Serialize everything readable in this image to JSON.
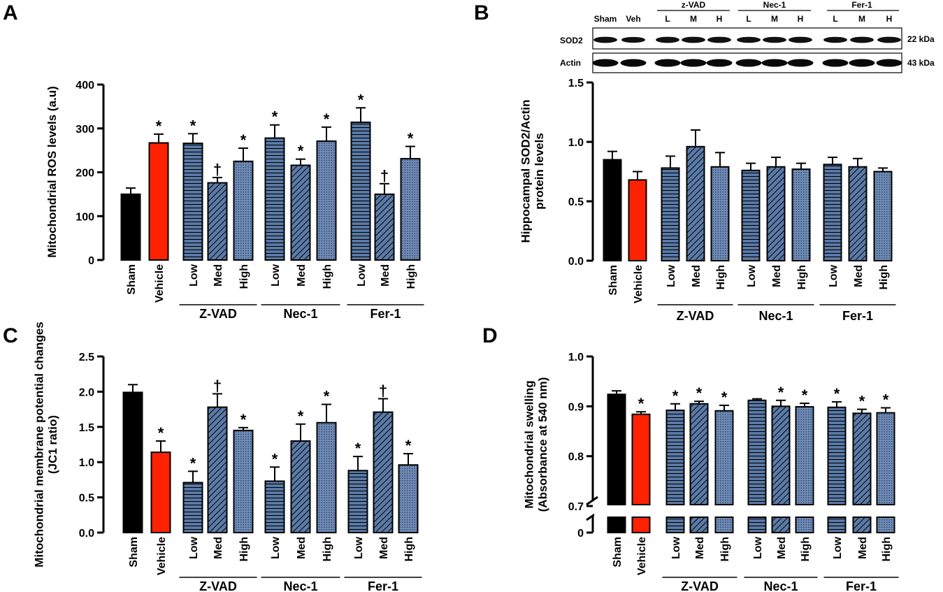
{
  "chart_data": [
    {
      "panel": "A",
      "type": "bar",
      "ylabel": "Mitochondrial ROS levels (a.u)",
      "ylim": [
        0,
        400
      ],
      "yticks": [
        "0",
        "100",
        "200",
        "300",
        "400"
      ],
      "categories": [
        "Sham",
        "Vehicle",
        "Low",
        "Med",
        "High",
        "Low",
        "Med",
        "High",
        "Low",
        "Med",
        "High"
      ],
      "groups": [
        "Z-VAD",
        "Nec-1",
        "Fer-1"
      ],
      "values": [
        150,
        267,
        266,
        176,
        225,
        278,
        216,
        271,
        314,
        150,
        231
      ],
      "errors": [
        14,
        20,
        22,
        12,
        30,
        30,
        14,
        32,
        33,
        24,
        28
      ],
      "annotations": [
        "",
        "*",
        "*",
        "†",
        "*",
        "*",
        "*",
        "*",
        "*",
        "†",
        "*"
      ]
    },
    {
      "panel": "B",
      "type": "bar",
      "ylabel": "Hippocampal SOD2/Actin protein levels",
      "ylim": [
        0,
        1.5
      ],
      "yticks": [
        "0.0",
        "0.5",
        "1.0",
        "1.5"
      ],
      "categories": [
        "Sham",
        "Vehicle",
        "Low",
        "Med",
        "High",
        "Low",
        "Med",
        "High",
        "Low",
        "Med",
        "High"
      ],
      "groups": [
        "Z-VAD",
        "Nec-1",
        "Fer-1"
      ],
      "values": [
        0.85,
        0.68,
        0.78,
        0.96,
        0.79,
        0.76,
        0.79,
        0.77,
        0.81,
        0.79,
        0.75
      ],
      "errors": [
        0.07,
        0.07,
        0.1,
        0.14,
        0.12,
        0.06,
        0.08,
        0.05,
        0.06,
        0.07,
        0.03
      ],
      "annotations": [
        "",
        "",
        "",
        "",
        "",
        "",
        "",
        "",
        "",
        "",
        ""
      ]
    },
    {
      "panel": "C",
      "type": "bar",
      "ylabel": "Mitochondrial membrane potential changes (JC1 ratio)",
      "ylim": [
        0,
        2.5
      ],
      "yticks": [
        "0.0",
        "0.5",
        "1.0",
        "1.5",
        "2.0",
        "2.5"
      ],
      "categories": [
        "Sham",
        "Vehicle",
        "Low",
        "Med",
        "High",
        "Low",
        "Med",
        "High",
        "Low",
        "Med",
        "High"
      ],
      "groups": [
        "Z-VAD",
        "Nec-1",
        "Fer-1"
      ],
      "values": [
        1.99,
        1.14,
        0.71,
        1.78,
        1.45,
        0.73,
        1.3,
        1.56,
        0.88,
        1.71,
        0.96
      ],
      "errors": [
        0.11,
        0.16,
        0.16,
        0.19,
        0.04,
        0.2,
        0.24,
        0.26,
        0.2,
        0.19,
        0.16
      ],
      "annotations": [
        "",
        "*",
        "*",
        "†",
        "*",
        "*",
        "*",
        "*",
        "*",
        "†",
        "*"
      ]
    },
    {
      "panel": "D",
      "type": "bar",
      "ylabel": "Mitochondrial swelling (Absorbance at 540 nm)",
      "ylim": [
        0.7,
        1.0
      ],
      "axis_break": true,
      "yticks": [
        "0",
        "0.7",
        "0.8",
        "0.9",
        "1.0"
      ],
      "categories": [
        "Sham",
        "Vehicle",
        "Low",
        "Med",
        "High",
        "Low",
        "Med",
        "High",
        "Low",
        "Med",
        "High"
      ],
      "groups": [
        "Z-VAD",
        "Nec-1",
        "Fer-1"
      ],
      "values": [
        0.924,
        0.884,
        0.892,
        0.905,
        0.891,
        0.912,
        0.9,
        0.899,
        0.898,
        0.886,
        0.887
      ],
      "errors": [
        0.007,
        0.005,
        0.013,
        0.005,
        0.011,
        0.003,
        0.012,
        0.007,
        0.011,
        0.008,
        0.01
      ],
      "annotations": [
        "",
        "*",
        "*",
        "*",
        "*",
        "",
        "*",
        "*",
        "*",
        "*",
        "*"
      ]
    }
  ],
  "western_blot": {
    "lanes": [
      "Sham",
      "Veh",
      "L",
      "M",
      "H",
      "L",
      "M",
      "H",
      "L",
      "M",
      "H"
    ],
    "groups": [
      "z-VAD",
      "Nec-1",
      "Fer-1"
    ],
    "rows": [
      {
        "label": "SOD2",
        "size": "22 kDa"
      },
      {
        "label": "Actin",
        "size": "43 kDa"
      }
    ]
  },
  "colors": {
    "sham": "#000000",
    "vehicle": "#ff2200",
    "treatment": "#5b7ba8",
    "axis": "#000000"
  }
}
